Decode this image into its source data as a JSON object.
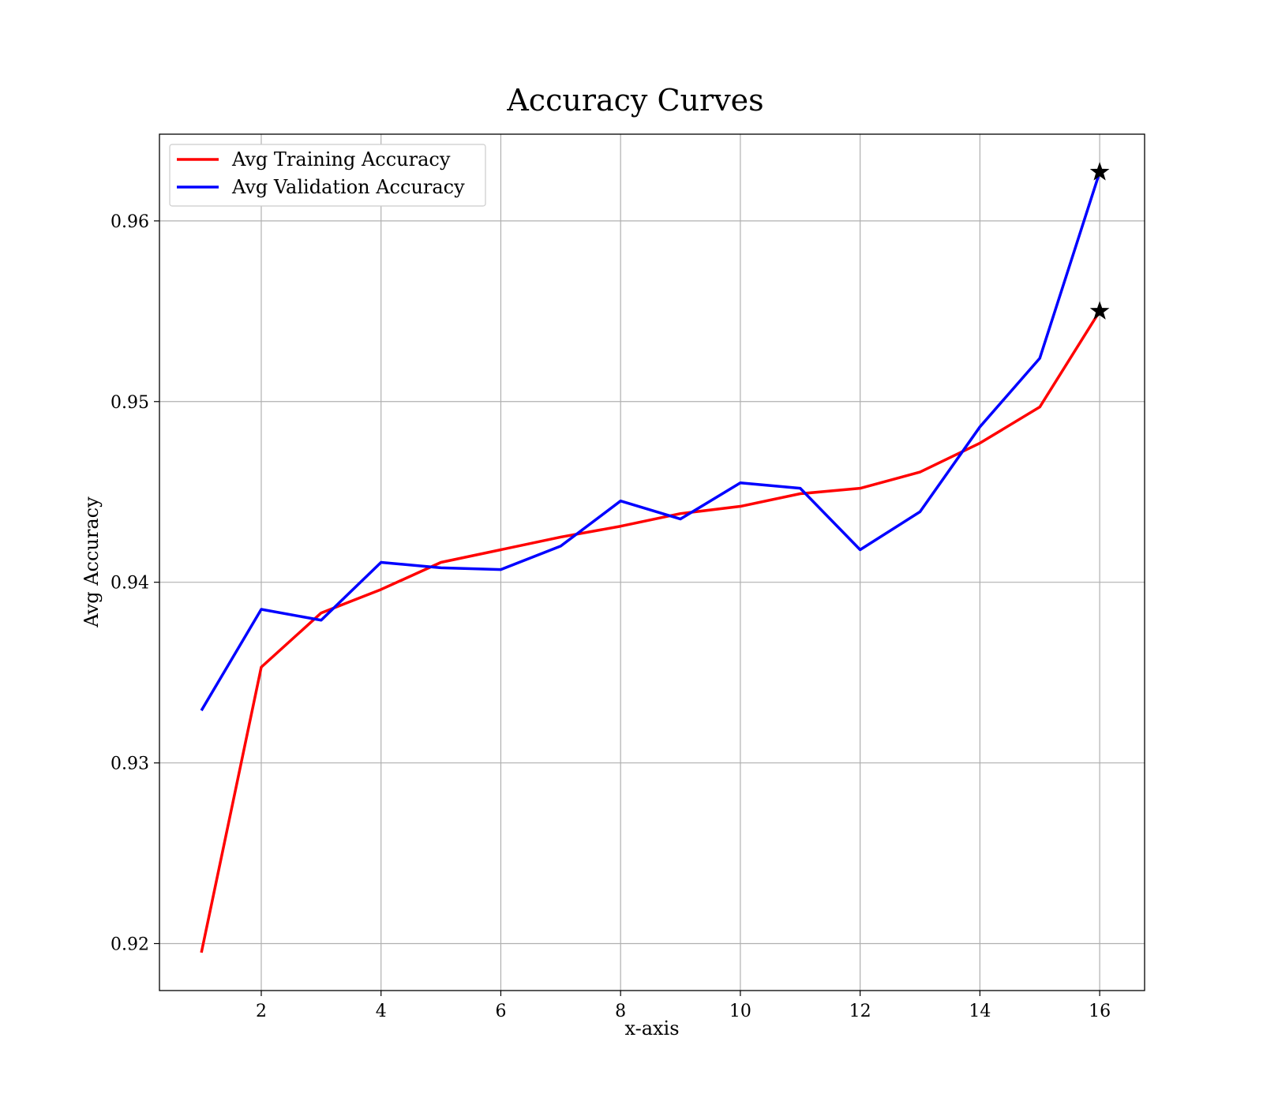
{
  "chart_data": {
    "type": "line",
    "title": "Accuracy Curves",
    "xlabel": "x-axis",
    "ylabel": "Avg Accuracy",
    "xlim": [
      0.3,
      16.75
    ],
    "ylim": [
      0.9174,
      0.9648
    ],
    "xticks": [
      2,
      4,
      6,
      8,
      10,
      12,
      14,
      16
    ],
    "yticks": [
      0.92,
      0.93,
      0.94,
      0.95,
      0.96
    ],
    "grid": true,
    "legend_position": "top-left",
    "x": [
      1,
      2,
      3,
      4,
      5,
      6,
      7,
      8,
      9,
      10,
      11,
      12,
      13,
      14,
      15,
      16
    ],
    "series": [
      {
        "name": "Avg Training Accuracy",
        "color": "#ff0000",
        "values": [
          0.9195,
          0.9353,
          0.9383,
          0.9396,
          0.9411,
          0.9418,
          0.9425,
          0.9431,
          0.9438,
          0.9442,
          0.9449,
          0.9452,
          0.9461,
          0.9477,
          0.9497,
          0.955
        ],
        "marker": "best-star"
      },
      {
        "name": "Avg Validation Accuracy",
        "color": "#0000ff",
        "values": [
          0.9329,
          0.9385,
          0.9379,
          0.9411,
          0.9408,
          0.9407,
          0.942,
          0.9445,
          0.9435,
          0.9455,
          0.9452,
          0.9418,
          0.9439,
          0.9486,
          0.9524,
          0.9627
        ],
        "marker": "best-star"
      }
    ]
  }
}
